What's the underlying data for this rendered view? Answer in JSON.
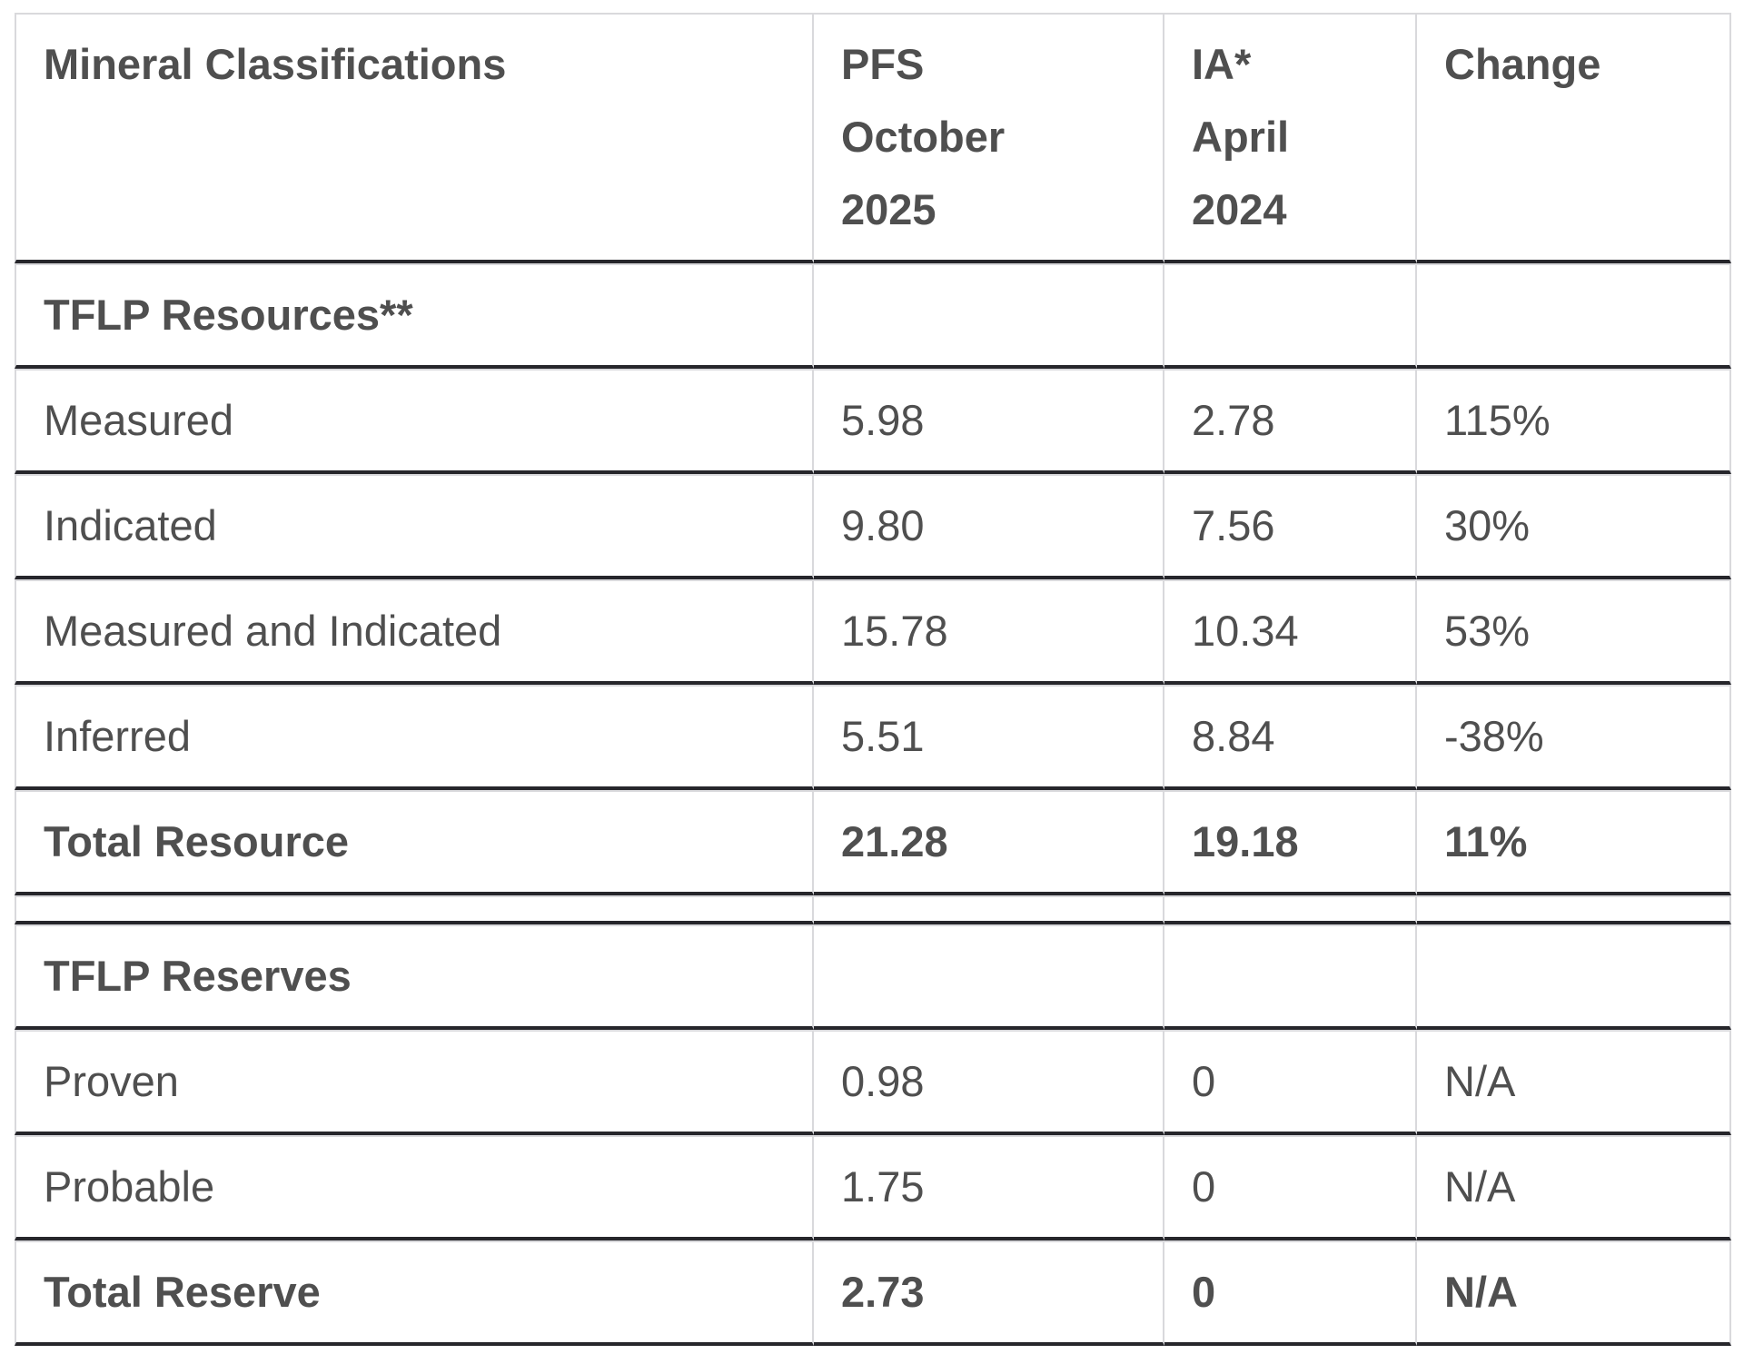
{
  "colors": {
    "text": "#4f4f4f",
    "dark_row_border": "#26262b",
    "light_cell_border": "#d9d9dc",
    "background": "#ffffff"
  },
  "table": {
    "columns": [
      "Mineral Classifications",
      "PFS\nOctober\n2025",
      "IA*\nApril\n2024",
      "Change"
    ],
    "rows": [
      {
        "label": "TFLP Resources**",
        "pfs": "",
        "ia": "",
        "change": "",
        "bold": true,
        "section": true
      },
      {
        "label": "Measured",
        "pfs": "5.98",
        "ia": "2.78",
        "change": "115%"
      },
      {
        "label": "Indicated",
        "pfs": "9.80",
        "ia": "7.56",
        "change": "30%"
      },
      {
        "label": "Measured and Indicated",
        "pfs": "15.78",
        "ia": "10.34",
        "change": "53%"
      },
      {
        "label": "Inferred",
        "pfs": "5.51",
        "ia": "8.84",
        "change": "-38%"
      },
      {
        "label": "Total Resource",
        "pfs": "21.28",
        "ia": "19.18",
        "change": "11%",
        "bold": true
      },
      {
        "label": "",
        "pfs": "",
        "ia": "",
        "change": "",
        "spacer": true
      },
      {
        "label": "TFLP Reserves",
        "pfs": "",
        "ia": "",
        "change": "",
        "bold": true,
        "section": true
      },
      {
        "label": "Proven",
        "pfs": "0.98",
        "ia": "0",
        "change": "N/A"
      },
      {
        "label": "Probable",
        "pfs": "1.75",
        "ia": "0",
        "change": "N/A"
      },
      {
        "label": "Total Reserve",
        "pfs": "2.73",
        "ia": "0",
        "change": "N/A",
        "bold": true
      }
    ]
  },
  "chart_data": {
    "type": "table",
    "title": "Mineral Classifications",
    "sections": [
      "TFLP Resources**",
      "TFLP Reserves"
    ],
    "categories": [
      "Measured",
      "Indicated",
      "Measured and Indicated",
      "Inferred",
      "Total Resource",
      "Proven",
      "Probable",
      "Total Reserve"
    ],
    "series": [
      {
        "name": "PFS October 2025",
        "values": [
          5.98,
          9.8,
          15.78,
          5.51,
          21.28,
          0.98,
          1.75,
          2.73
        ]
      },
      {
        "name": "IA* April 2024",
        "values": [
          2.78,
          7.56,
          10.34,
          8.84,
          19.18,
          0,
          0,
          0
        ]
      },
      {
        "name": "Change",
        "values": [
          "115%",
          "30%",
          "53%",
          "-38%",
          "11%",
          "N/A",
          "N/A",
          "N/A"
        ]
      }
    ]
  }
}
